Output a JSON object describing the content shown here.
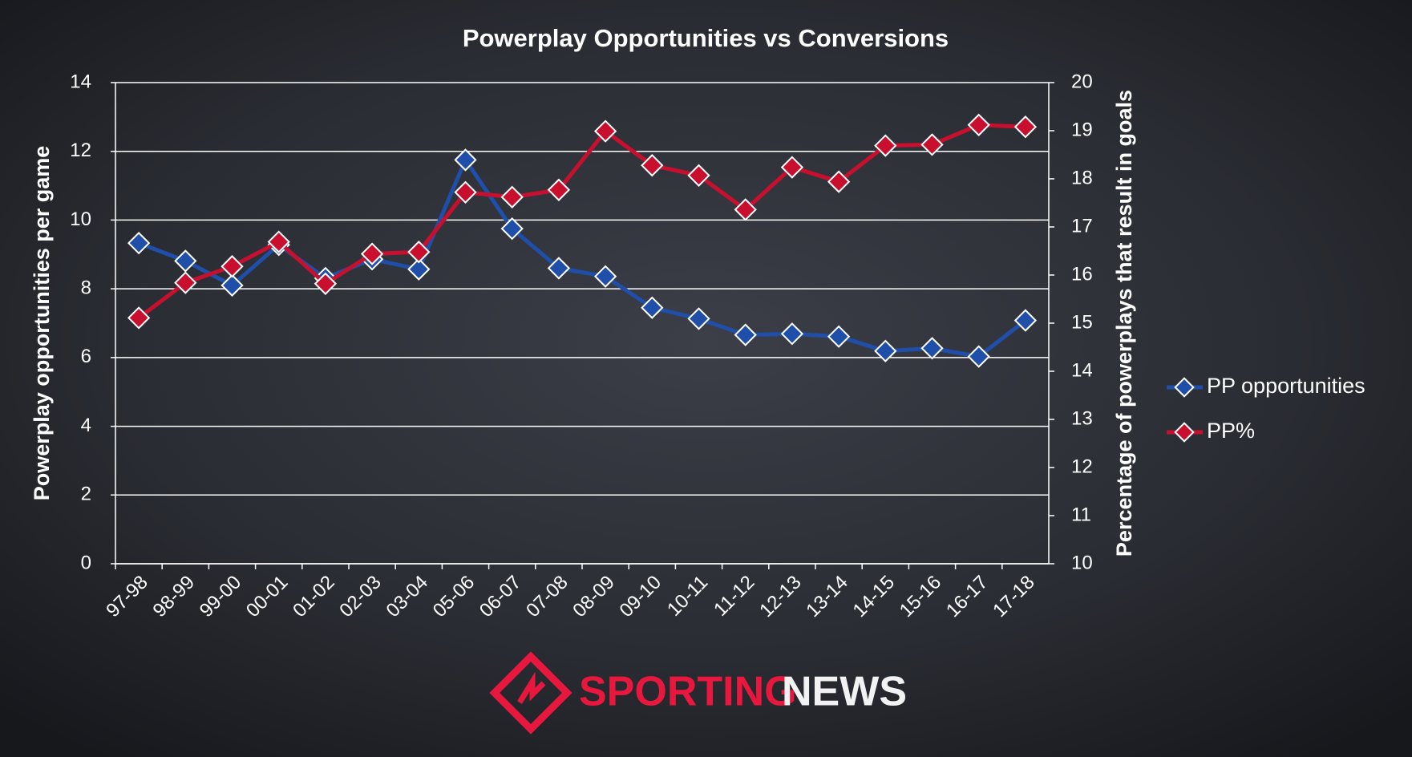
{
  "chart_data": {
    "type": "line",
    "title": "Powerplay Opportunities vs Conversions",
    "categories": [
      "97-98",
      "98-99",
      "99-00",
      "00-01",
      "01-02",
      "02-03",
      "03-04",
      "05-06",
      "06-07",
      "07-08",
      "08-09",
      "09-10",
      "10-11",
      "11-12",
      "12-13",
      "13-14",
      "14-15",
      "15-16",
      "16-17",
      "17-18"
    ],
    "series": [
      {
        "name": "PP opportunities",
        "color": "#1f4fa8",
        "axis": "y",
        "values": [
          9.33,
          8.81,
          8.1,
          9.28,
          8.31,
          8.86,
          8.57,
          11.75,
          9.75,
          8.6,
          8.36,
          7.45,
          7.13,
          6.66,
          6.69,
          6.61,
          6.19,
          6.27,
          6.03,
          7.08
        ]
      },
      {
        "name": "PP%",
        "color": "#c8102e",
        "axis": "y2",
        "values": [
          15.11,
          15.84,
          16.18,
          16.69,
          15.82,
          16.44,
          16.48,
          17.72,
          17.62,
          17.77,
          18.99,
          18.28,
          18.07,
          17.36,
          18.24,
          17.94,
          18.69,
          18.71,
          19.12,
          19.08
        ]
      }
    ],
    "ylabel": "Powerplay opportunities per game",
    "y2label": "Percentage of powerplays that result in goals",
    "ylim": [
      0,
      14
    ],
    "yticks": [
      0,
      2,
      4,
      6,
      8,
      10,
      12,
      14
    ],
    "y2lim": [
      10,
      20
    ],
    "y2ticks": [
      10,
      11,
      12,
      13,
      14,
      15,
      16,
      17,
      18,
      19,
      20
    ],
    "grid": true,
    "legend": "right",
    "brand": {
      "first": "SPORTING",
      "second": "NEWS"
    }
  }
}
